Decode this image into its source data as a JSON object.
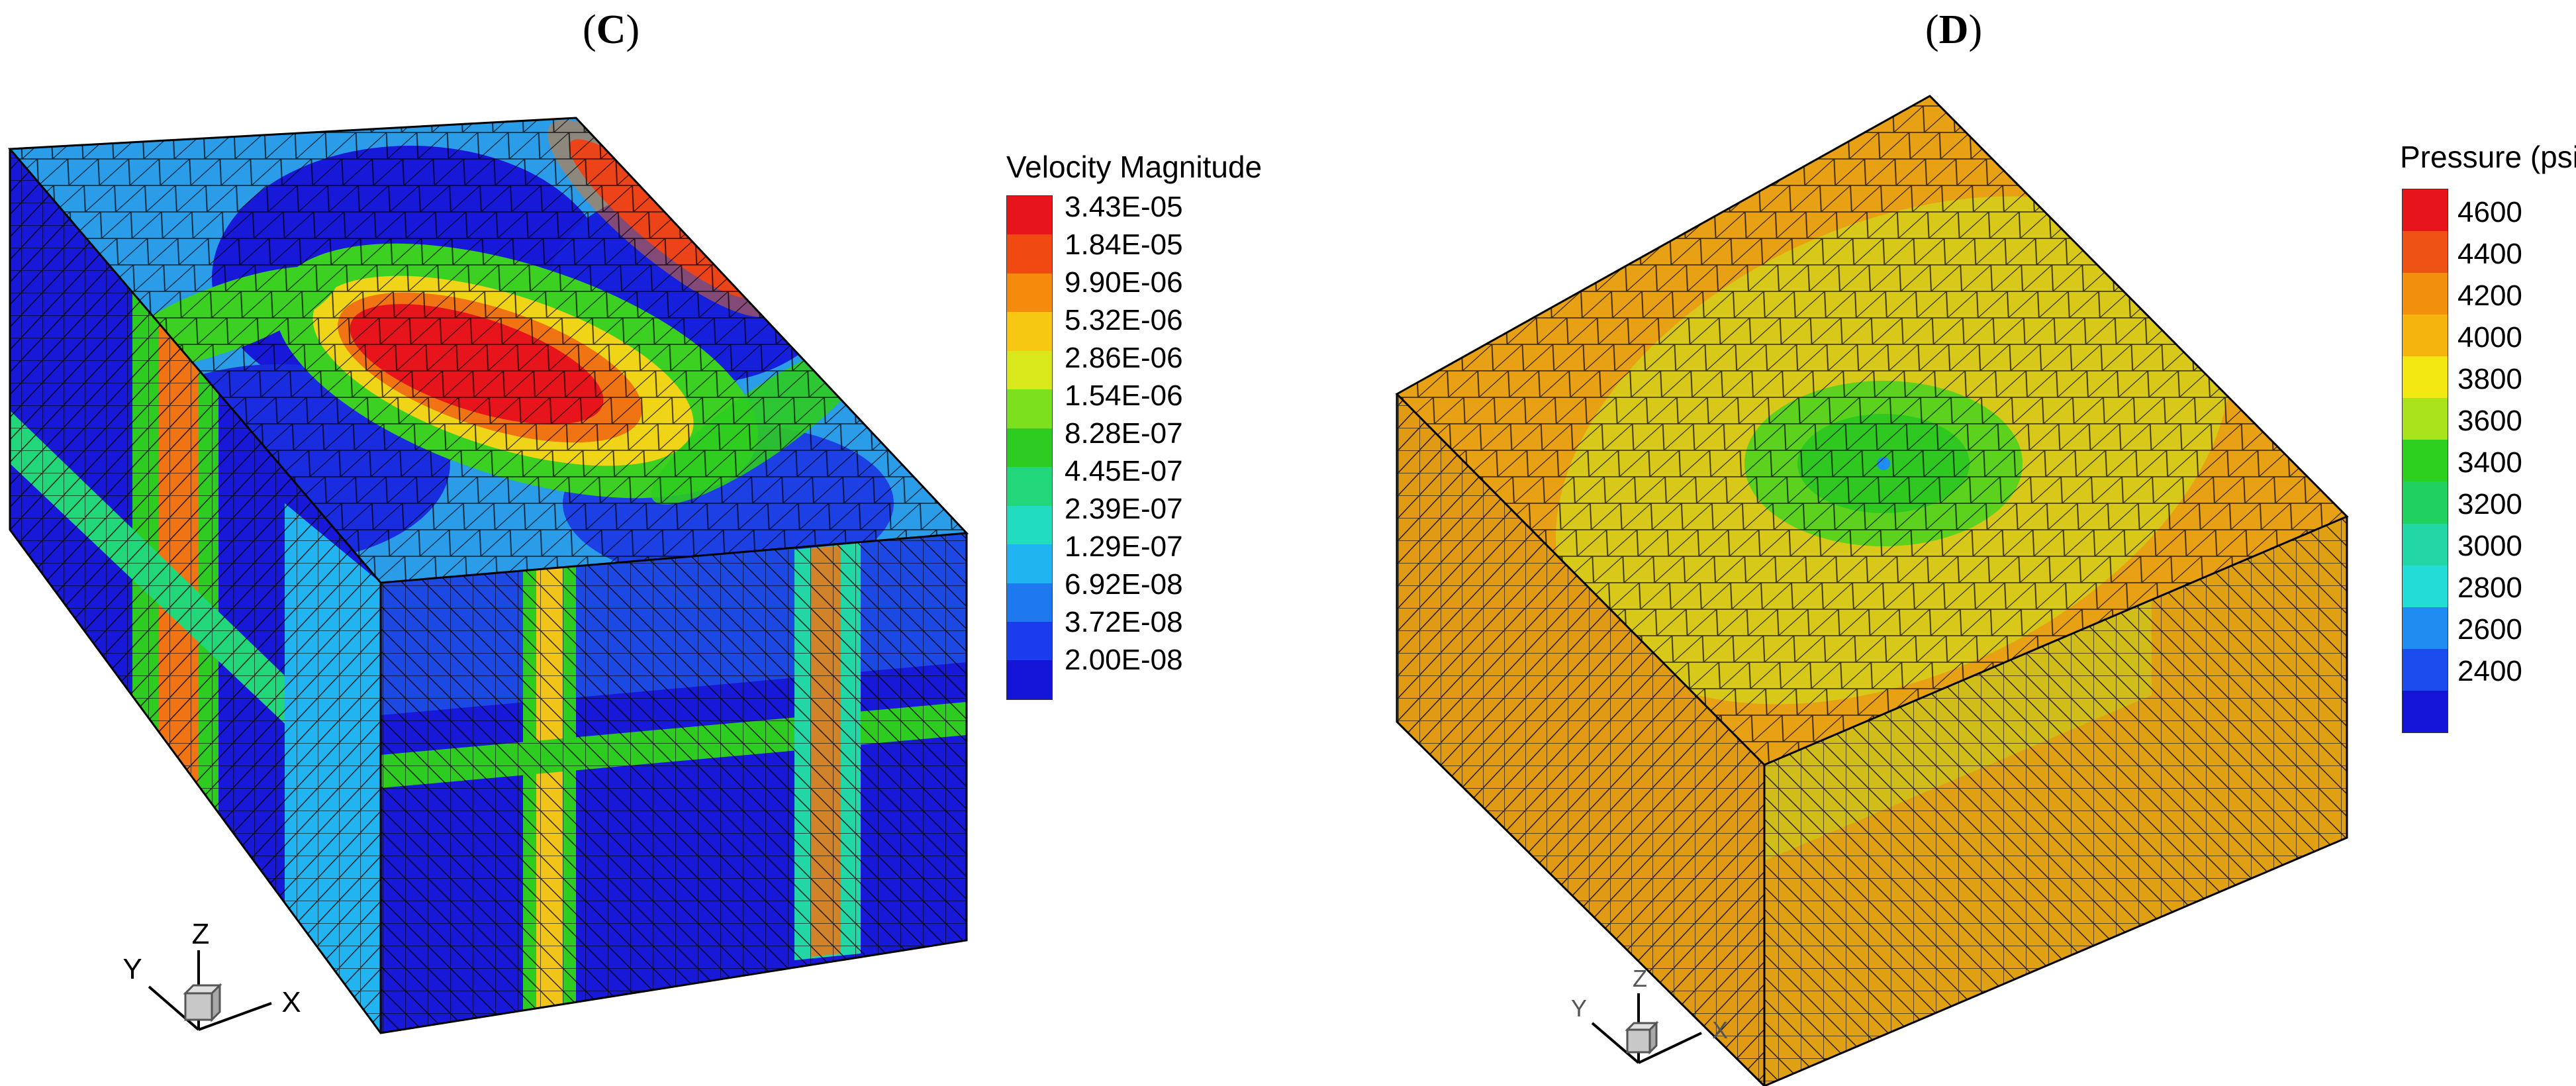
{
  "panels": [
    {
      "label": "C",
      "legend": {
        "title": "Velocity Magnitude",
        "ticks": [
          "3.43E-05",
          "1.84E-05",
          "9.90E-06",
          "5.32E-06",
          "2.86E-06",
          "1.54E-06",
          "8.28E-07",
          "4.45E-07",
          "2.39E-07",
          "1.29E-07",
          "6.92E-08",
          "3.72E-08",
          "2.00E-08"
        ],
        "colors": [
          "#e8141c",
          "#f04a12",
          "#f58a0c",
          "#f7c812",
          "#d8e81a",
          "#7de01e",
          "#2ecc20",
          "#22d67a",
          "#22dcc0",
          "#20b4f0",
          "#1e78f0",
          "#1a3cec",
          "#1414d8"
        ]
      },
      "axes": {
        "x": "X",
        "y": "Y",
        "z": "Z"
      }
    },
    {
      "label": "D",
      "legend": {
        "title": "Pressure (psi)",
        "ticks": [
          "4600",
          "4400",
          "4200",
          "4000",
          "3800",
          "3600",
          "3400",
          "3200",
          "3000",
          "2800",
          "2600",
          "2400"
        ],
        "colors": [
          "#e8141c",
          "#ee5214",
          "#f2900e",
          "#f5b40e",
          "#f2e812",
          "#a8e41c",
          "#2ed020",
          "#20d060",
          "#22d6a6",
          "#22dcd8",
          "#1e8cf0",
          "#1c4cee",
          "#1414d8"
        ]
      },
      "axes": {
        "x": "X",
        "y": "Y",
        "z": "Z"
      }
    }
  ]
}
